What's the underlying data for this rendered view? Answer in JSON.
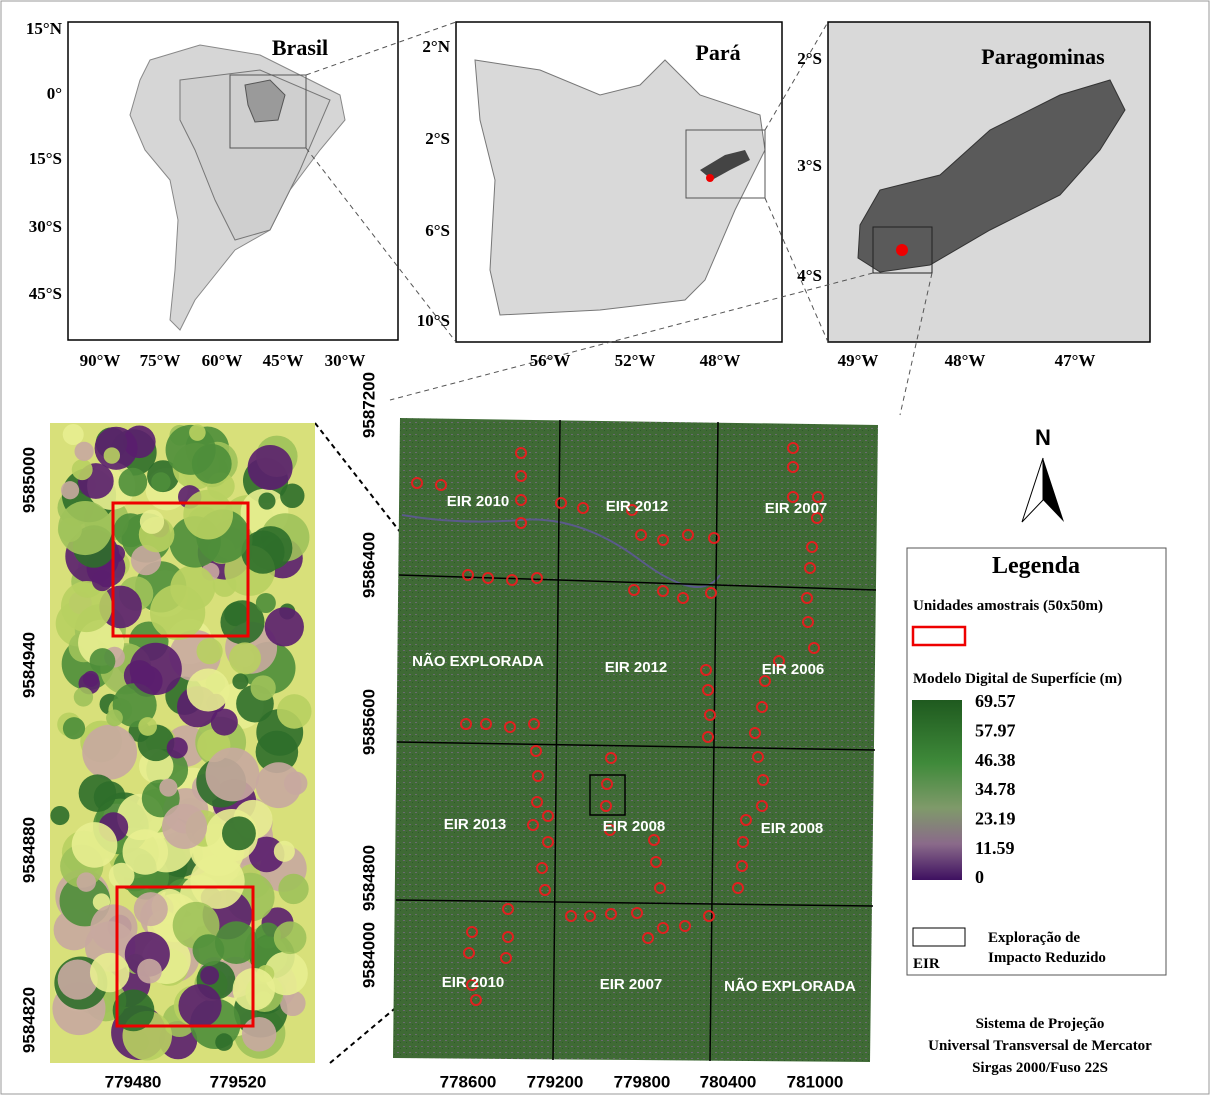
{
  "panels": {
    "brasil": {
      "title": "Brasil",
      "lat_labels": [
        "15°N",
        "0°",
        "15°S",
        "30°S",
        "45°S"
      ],
      "lon_labels": [
        "90°W",
        "75°W",
        "60°W",
        "45°W",
        "30°W"
      ]
    },
    "para": {
      "title": "Pará",
      "lat_labels": [
        "2°N",
        "2°S",
        "6°S",
        "10°S"
      ],
      "lon_labels": [
        "56°W",
        "52°W",
        "48°W"
      ]
    },
    "paragominas": {
      "title": "Paragominas",
      "lat_labels": [
        "2°S",
        "3°S",
        "4°S"
      ],
      "lon_labels": [
        "49°W",
        "48°W",
        "47°W"
      ]
    },
    "detail": {
      "y_labels": [
        "9585000",
        "9584940",
        "9584880",
        "9584820"
      ],
      "x_labels": [
        "779480",
        "779520"
      ]
    },
    "main": {
      "y_labels": [
        "9587200",
        "9586400",
        "9585600",
        "9584800",
        "9584000"
      ],
      "x_labels": [
        "778600",
        "779200",
        "779800",
        "780400",
        "781000"
      ],
      "compartments": [
        "EIR 2010",
        "EIR 2012",
        "EIR 2007",
        "NÃO EXPLORADA",
        "EIR 2012",
        "EIR 2006",
        "EIR 2013",
        "EIR 2008",
        "EIR 2008",
        "EIR 2010",
        "EIR 2007",
        "NÃO EXPLORADA"
      ]
    }
  },
  "north_arrow": "N",
  "legend": {
    "title": "Legenda",
    "sample_units": "Unidades amostrais (50x50m)",
    "dsm_title": "Modelo Digital de Superfície (m)",
    "dsm_labels": [
      "69.57",
      "57.97",
      "46.38",
      "34.78",
      "23.19",
      "11.59",
      "0"
    ],
    "eir_line1": "Exploração de",
    "eir_line2": "Impacto Reduzido",
    "eir_abbrev": "EIR"
  },
  "projection": [
    "Sistema de Projeção",
    "Universal Transversal de Mercator",
    "Sirgas 2000/Fuso 22S"
  ]
}
